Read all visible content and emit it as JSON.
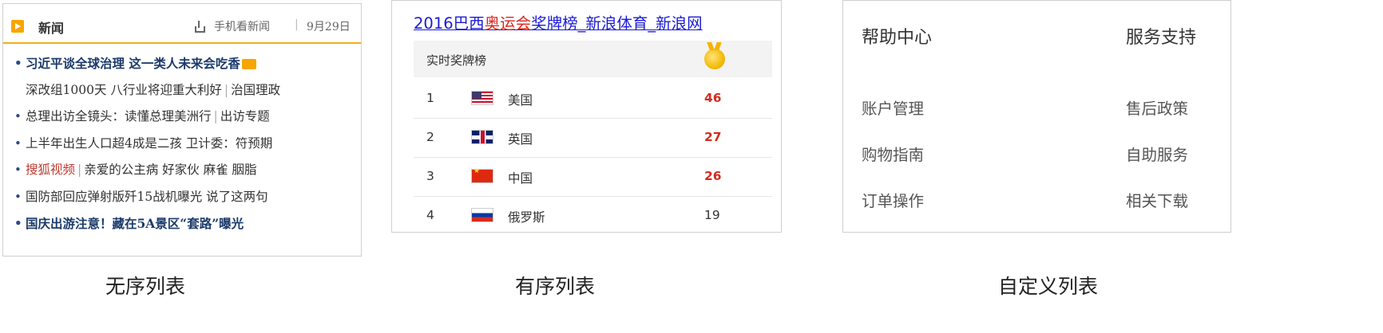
{
  "news": {
    "title": "新闻",
    "mobile_label": "手机看新闻",
    "separator": "|",
    "date": "9月29日",
    "items": [
      {
        "text": "习近平谈全球治理 这一类人未来会吃香",
        "style": "bold",
        "video": true
      },
      {
        "text": "深改组1000天 八行业将迎重大利好",
        "tail": "治国理政",
        "style": "indent"
      },
      {
        "text": "总理出访全镜头：读懂总理美洲行",
        "tail": "出访专题",
        "style": "normal"
      },
      {
        "text": "上半年出生人口超4成是二孩 卫计委：符预期",
        "style": "normal"
      },
      {
        "text": "搜狐视频",
        "tail": "亲爱的公主病 好家伙 麻雀 胭脂",
        "style": "red"
      },
      {
        "text": "国防部回应弹射版歼15战机曝光 说了这两句",
        "style": "normal"
      },
      {
        "text": "国庆出游注意！藏在5A景区“套路”曝光",
        "style": "bold"
      }
    ]
  },
  "medal_table": {
    "title_prefix": "2016巴西",
    "title_accent": "奥运会",
    "title_suffix": "奖牌榜_新浪体育_新浪网",
    "subheader": "实时奖牌榜",
    "medal_icon": "gold-medal-icon",
    "rows": [
      {
        "rank": "1",
        "flag": "us-flag-icon",
        "country": "美国",
        "count": "46"
      },
      {
        "rank": "2",
        "flag": "uk-flag-icon",
        "country": "英国",
        "count": "27"
      },
      {
        "rank": "3",
        "flag": "china-flag-icon",
        "country": "中国",
        "count": "26"
      },
      {
        "rank": "4",
        "flag": "russia-flag-icon",
        "country": "俄罗斯",
        "count": "19"
      }
    ]
  },
  "help": {
    "columns": [
      {
        "heading": "帮助中心",
        "items": [
          "账户管理",
          "购物指南",
          "订单操作"
        ]
      },
      {
        "heading": "服务支持",
        "items": [
          "售后政策",
          "自助服务",
          "相关下载"
        ]
      }
    ]
  },
  "captions": {
    "unordered": "无序列表",
    "ordered": "有序列表",
    "definition": "自定义列表"
  }
}
